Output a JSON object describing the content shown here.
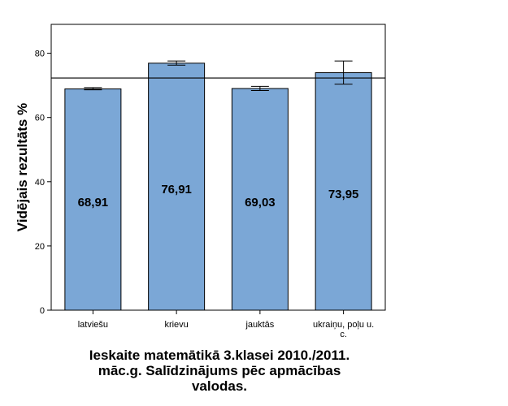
{
  "chart_data": {
    "type": "bar",
    "title_lines": [
      "Ieskaite matemātikā 3.klasei 2010./2011.",
      "māc.g. Salīdzinājums pēc apmācības",
      "valodas."
    ],
    "ylabel": "Vidējais rezultāts %",
    "xlabel": "",
    "categories": [
      [
        "latviešu"
      ],
      [
        "krievu"
      ],
      [
        "jauktās"
      ],
      [
        "ukraiņu, poļu u.",
        "c."
      ]
    ],
    "values": [
      68.91,
      76.91,
      69.03,
      73.95
    ],
    "value_labels": [
      "68,91",
      "76,91",
      "69,03",
      "73,95"
    ],
    "error_low": [
      68.6,
      76.3,
      68.4,
      70.4
    ],
    "error_high": [
      69.3,
      77.6,
      69.7,
      77.6
    ],
    "reference_line": 72.3,
    "ylim": [
      0,
      89
    ],
    "yticks": [
      0,
      20,
      40,
      60,
      80
    ],
    "ytick_labels": [
      "0",
      "20",
      "40",
      "60",
      "80"
    ],
    "bar_color": "#7BA7D6",
    "grid": false,
    "legend": "none"
  }
}
